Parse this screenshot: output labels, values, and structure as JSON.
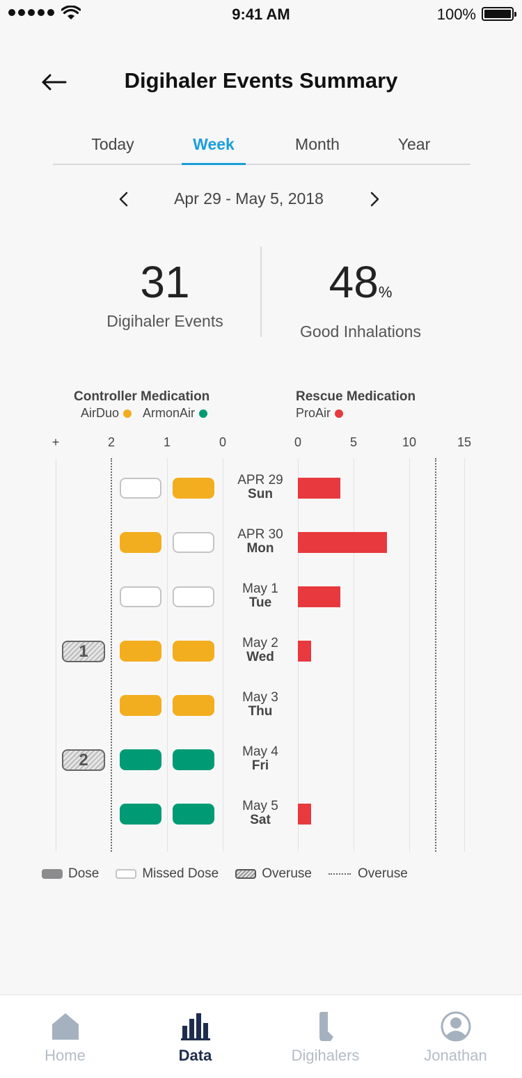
{
  "status_bar": {
    "time": "9:41 AM",
    "battery": "100%"
  },
  "header": {
    "title": "Digihaler Events Summary"
  },
  "tabs": [
    "Today",
    "Week",
    "Month",
    "Year"
  ],
  "active_tab": "Week",
  "date_range": "Apr 29 - May 5, 2018",
  "stats": {
    "events_value": "31",
    "events_label": "Digihaler Events",
    "good_value": "48",
    "good_unit": "%",
    "good_label": "Good Inhalations"
  },
  "legend": {
    "controller_heading": "Controller Medication",
    "controller_meds": [
      "AirDuo",
      "ArmonAir"
    ],
    "rescue_heading": "Rescue Medication",
    "rescue_meds": [
      "ProAir"
    ]
  },
  "axes": {
    "controller_ticks": [
      "+",
      "2",
      "1",
      "0"
    ],
    "rescue_ticks": [
      "0",
      "5",
      "10",
      "15"
    ]
  },
  "colors": {
    "airduo": "#f2ae1f",
    "armonair": "#009b74",
    "proair": "#e8393e",
    "accent": "#1a9fd9",
    "nav_active": "#1f2d4d"
  },
  "chart_data": {
    "type": "bar",
    "days": [
      {
        "date": "APR 29",
        "dow": "Sun",
        "dose1": "missed",
        "dose2": "airduo",
        "overuse": null,
        "rescue": 3.8
      },
      {
        "date": "APR 30",
        "dow": "Mon",
        "dose1": "airduo",
        "dose2": "missed",
        "overuse": null,
        "rescue": 8
      },
      {
        "date": "May 1",
        "dow": "Tue",
        "dose1": "missed",
        "dose2": "missed",
        "overuse": null,
        "rescue": 3.8
      },
      {
        "date": "May 2",
        "dow": "Wed",
        "dose1": "airduo",
        "dose2": "airduo",
        "overuse": "1",
        "rescue": 1.2
      },
      {
        "date": "May 3",
        "dow": "Thu",
        "dose1": "airduo",
        "dose2": "airduo",
        "overuse": null,
        "rescue": 0
      },
      {
        "date": "May 4",
        "dow": "Fri",
        "dose1": "armonair",
        "dose2": "armonair",
        "overuse": "2",
        "rescue": 0
      },
      {
        "date": "May 5",
        "dow": "Sat",
        "dose1": "armonair",
        "dose2": "armonair",
        "overuse": null,
        "rescue": 1.2
      }
    ],
    "rescue_axis": [
      0,
      15
    ],
    "rescue_overuse_threshold": 12.4
  },
  "bottom_legend": [
    "Dose",
    "Missed Dose",
    "Overuse",
    "Overuse"
  ],
  "nav": [
    "Home",
    "Data",
    "Digihalers",
    "Jonathan"
  ],
  "nav_active": "Data"
}
